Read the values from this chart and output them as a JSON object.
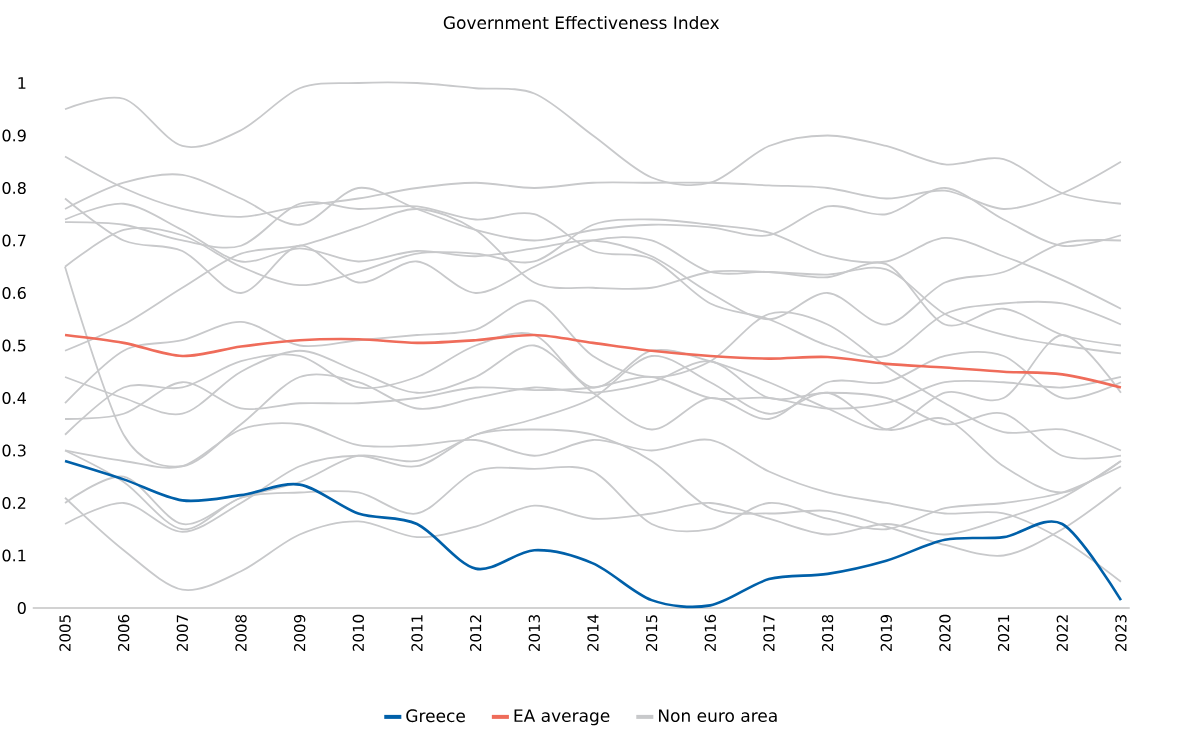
{
  "chart_data": {
    "type": "line",
    "title": "Government Effectiveness Index",
    "categories": [
      "2005",
      "2006",
      "2007",
      "2008",
      "2009",
      "2010",
      "2011",
      "2012",
      "2013",
      "2014",
      "2015",
      "2016",
      "2017",
      "2018",
      "2019",
      "2020",
      "2021",
      "2022",
      "2023"
    ],
    "ylim": [
      0,
      1
    ],
    "yticks": [
      0,
      0.1,
      0.2,
      0.3,
      0.4,
      0.5,
      0.6,
      0.7,
      0.8,
      0.9,
      1
    ],
    "grid": false,
    "legend": "bottom",
    "marker": "none",
    "line_style": "solid",
    "series": [
      {
        "name": "Greece",
        "color": "#0060a9",
        "values": [
          0.28,
          0.245,
          0.205,
          0.215,
          0.235,
          0.18,
          0.16,
          0.075,
          0.11,
          0.085,
          0.015,
          0.005,
          0.055,
          0.065,
          0.09,
          0.13,
          0.135,
          0.16,
          0.015
        ]
      },
      {
        "name": "EA average",
        "color": "#ef6c5a",
        "values": [
          0.52,
          0.505,
          0.48,
          0.498,
          0.51,
          0.512,
          0.505,
          0.51,
          0.52,
          0.505,
          0.49,
          0.48,
          0.475,
          0.478,
          0.465,
          0.458,
          0.45,
          0.445,
          0.42
        ]
      },
      {
        "name": "Non euro area",
        "color": "#c8c9cb",
        "values": [
          0.95,
          0.97,
          0.88,
          0.91,
          0.99,
          1.0,
          1.0,
          0.99,
          0.98,
          0.9,
          0.82,
          0.81,
          0.88,
          0.9,
          0.88,
          0.845,
          0.855,
          0.79,
          0.77
        ]
      },
      {
        "color": "#c8c9cb",
        "values": [
          0.86,
          0.8,
          0.76,
          0.745,
          0.765,
          0.78,
          0.8,
          0.81,
          0.8,
          0.81,
          0.81,
          0.81,
          0.805,
          0.8,
          0.78,
          0.795,
          0.76,
          0.79,
          0.85
        ]
      },
      {
        "color": "#c8c9cb",
        "values": [
          0.76,
          0.81,
          0.825,
          0.78,
          0.73,
          0.8,
          0.76,
          0.72,
          0.7,
          0.72,
          0.73,
          0.725,
          0.71,
          0.765,
          0.75,
          0.8,
          0.74,
          0.69,
          0.71
        ]
      },
      {
        "color": "#c8c9cb",
        "values": [
          0.74,
          0.77,
          0.72,
          0.66,
          0.685,
          0.66,
          0.68,
          0.67,
          0.685,
          0.7,
          0.67,
          0.6,
          0.55,
          0.6,
          0.54,
          0.62,
          0.64,
          0.695,
          0.7
        ]
      },
      {
        "color": "#c8c9cb",
        "values": [
          0.735,
          0.73,
          0.7,
          0.69,
          0.77,
          0.76,
          0.765,
          0.74,
          0.75,
          0.68,
          0.665,
          0.58,
          0.55,
          0.5,
          0.48,
          0.56,
          0.58,
          0.58,
          0.54
        ]
      },
      {
        "color": "#c8c9cb",
        "values": [
          0.78,
          0.7,
          0.68,
          0.6,
          0.69,
          0.62,
          0.66,
          0.6,
          0.65,
          0.7,
          0.7,
          0.64,
          0.64,
          0.63,
          0.655,
          0.54,
          0.57,
          0.52,
          0.5
        ]
      },
      {
        "color": "#c8c9cb",
        "values": [
          0.65,
          0.72,
          0.71,
          0.65,
          0.615,
          0.64,
          0.675,
          0.675,
          0.66,
          0.73,
          0.74,
          0.73,
          0.715,
          0.67,
          0.66,
          0.705,
          0.67,
          0.625,
          0.57
        ]
      },
      {
        "color": "#c8c9cb",
        "values": [
          0.65,
          0.33,
          0.27,
          0.35,
          0.44,
          0.43,
          0.38,
          0.4,
          0.42,
          0.41,
          0.43,
          0.47,
          0.4,
          0.41,
          0.4,
          0.35,
          0.37,
          0.29,
          0.29
        ]
      },
      {
        "color": "#c8c9cb",
        "values": [
          0.49,
          0.54,
          0.61,
          0.675,
          0.69,
          0.725,
          0.76,
          0.72,
          0.62,
          0.61,
          0.61,
          0.64,
          0.64,
          0.635,
          0.645,
          0.56,
          0.52,
          0.5,
          0.485
        ]
      },
      {
        "color": "#c8c9cb",
        "values": [
          0.39,
          0.49,
          0.51,
          0.545,
          0.5,
          0.51,
          0.52,
          0.53,
          0.585,
          0.48,
          0.44,
          0.47,
          0.56,
          0.54,
          0.46,
          0.39,
          0.335,
          0.34,
          0.3
        ]
      },
      {
        "color": "#c8c9cb",
        "values": [
          0.44,
          0.4,
          0.37,
          0.45,
          0.49,
          0.45,
          0.41,
          0.44,
          0.5,
          0.41,
          0.34,
          0.4,
          0.36,
          0.43,
          0.43,
          0.48,
          0.48,
          0.4,
          0.43
        ]
      },
      {
        "color": "#c8c9cb",
        "values": [
          0.33,
          0.42,
          0.42,
          0.47,
          0.48,
          0.42,
          0.44,
          0.5,
          0.52,
          0.42,
          0.49,
          0.47,
          0.43,
          0.38,
          0.34,
          0.41,
          0.4,
          0.52,
          0.41
        ]
      },
      {
        "color": "#c8c9cb",
        "values": [
          0.36,
          0.37,
          0.43,
          0.38,
          0.39,
          0.39,
          0.4,
          0.42,
          0.415,
          0.42,
          0.44,
          0.4,
          0.4,
          0.38,
          0.39,
          0.43,
          0.43,
          0.42,
          0.44
        ]
      },
      {
        "color": "#c8c9cb",
        "values": [
          0.3,
          0.28,
          0.27,
          0.34,
          0.35,
          0.31,
          0.31,
          0.32,
          0.29,
          0.32,
          0.3,
          0.32,
          0.26,
          0.22,
          0.2,
          0.18,
          0.18,
          0.13,
          0.05
        ]
      },
      {
        "color": "#c8c9cb",
        "values": [
          0.2,
          0.25,
          0.16,
          0.21,
          0.24,
          0.29,
          0.28,
          0.33,
          0.36,
          0.4,
          0.48,
          0.43,
          0.37,
          0.41,
          0.34,
          0.36,
          0.27,
          0.22,
          0.28
        ]
      },
      {
        "color": "#c8c9cb",
        "values": [
          0.21,
          0.11,
          0.035,
          0.07,
          0.14,
          0.165,
          0.135,
          0.155,
          0.195,
          0.17,
          0.18,
          0.2,
          0.17,
          0.14,
          0.16,
          0.14,
          0.17,
          0.21,
          0.28
        ]
      },
      {
        "color": "#c8c9cb",
        "values": [
          0.16,
          0.2,
          0.145,
          0.2,
          0.27,
          0.29,
          0.27,
          0.33,
          0.34,
          0.33,
          0.28,
          0.19,
          0.18,
          0.185,
          0.155,
          0.12,
          0.1,
          0.15,
          0.23
        ]
      },
      {
        "color": "#c8c9cb",
        "values": [
          0.3,
          0.24,
          0.15,
          0.21,
          0.22,
          0.22,
          0.18,
          0.26,
          0.265,
          0.26,
          0.16,
          0.15,
          0.2,
          0.17,
          0.15,
          0.19,
          0.2,
          0.22,
          0.27
        ]
      }
    ]
  }
}
